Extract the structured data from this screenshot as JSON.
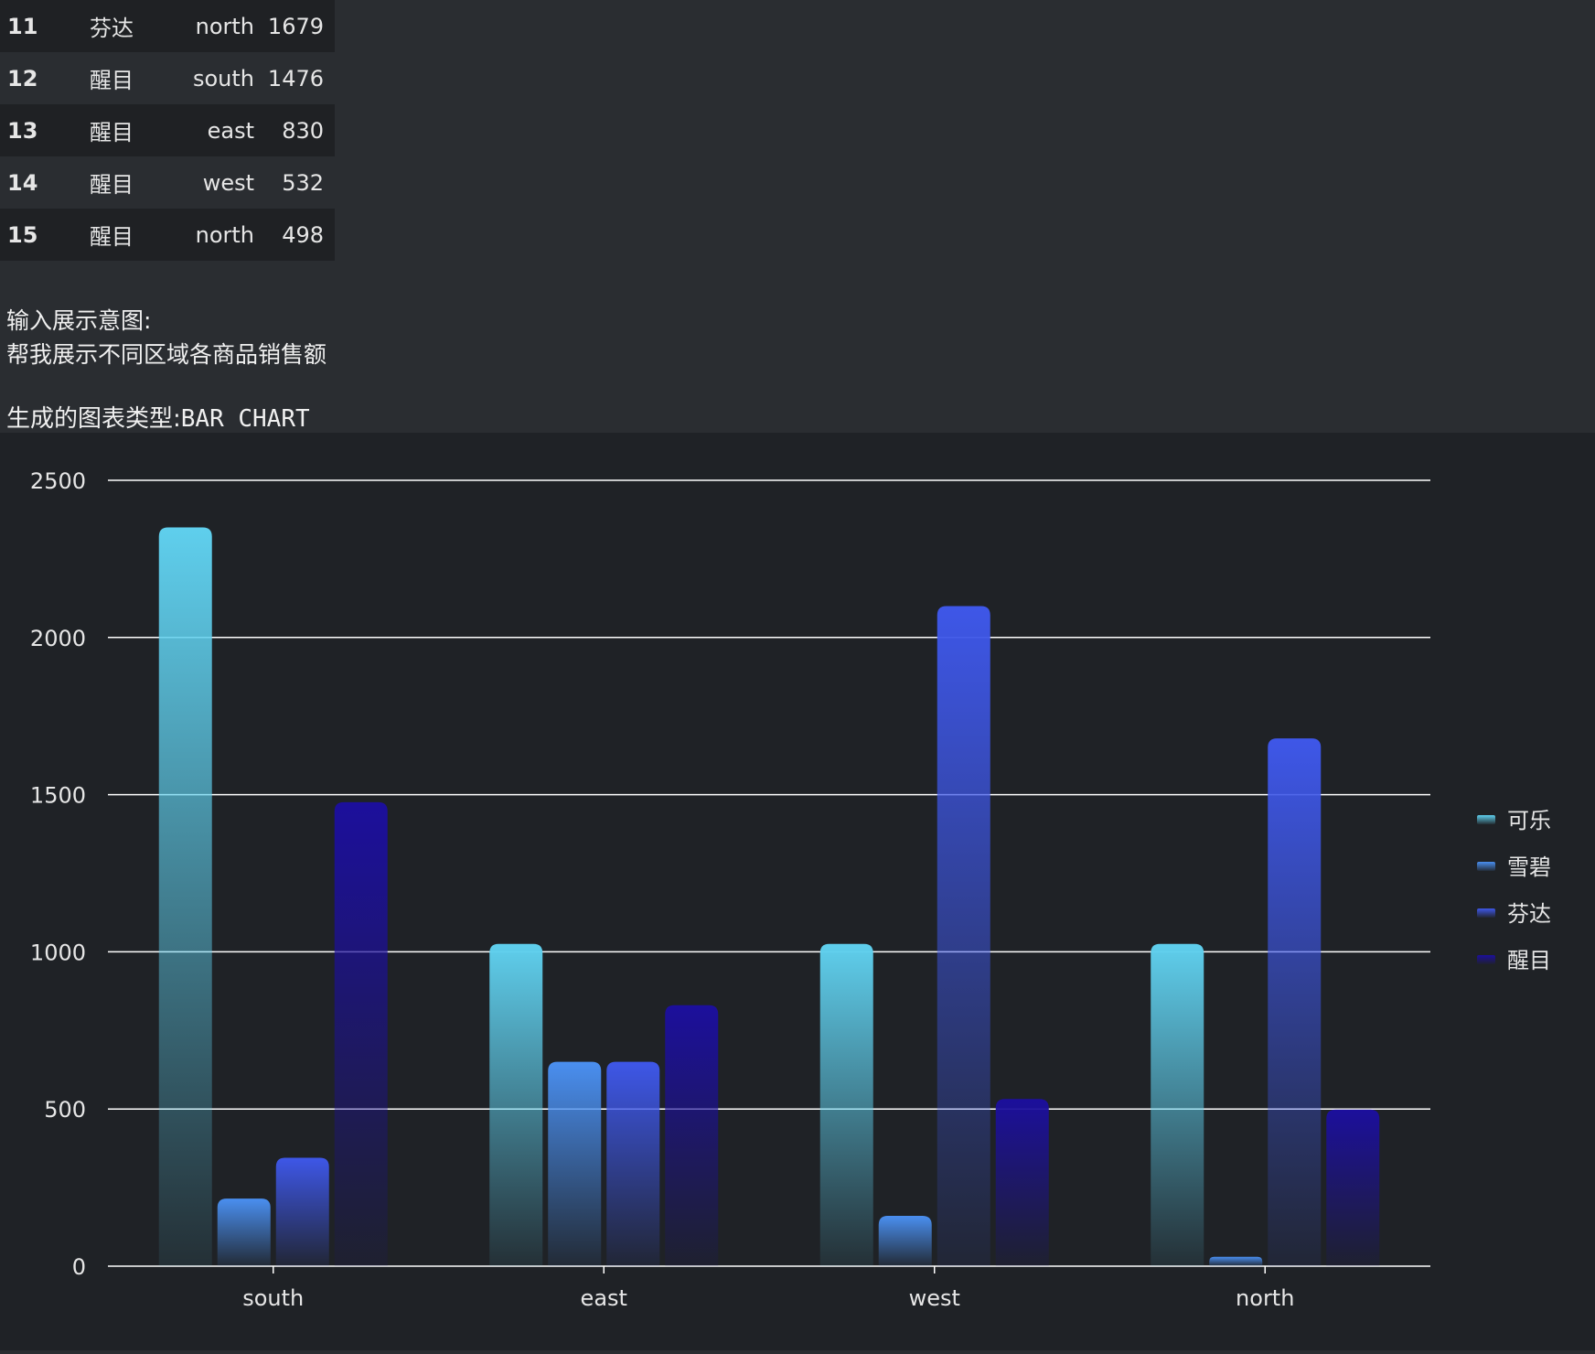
{
  "table": {
    "rows": [
      {
        "idx": "11",
        "product": "芬达",
        "region": "north",
        "value": "1679"
      },
      {
        "idx": "12",
        "product": "醒目",
        "region": "south",
        "value": "1476"
      },
      {
        "idx": "13",
        "product": "醒目",
        "region": "east",
        "value": "830"
      },
      {
        "idx": "14",
        "product": "醒目",
        "region": "west",
        "value": "532"
      },
      {
        "idx": "15",
        "product": "醒目",
        "region": "north",
        "value": "498"
      }
    ]
  },
  "intent": {
    "label": "输入展示意图:",
    "text": "帮我展示不同区域各商品销售额"
  },
  "chart_type_line": {
    "label": "生成的图表类型:",
    "value": "BAR CHART"
  },
  "colors": {
    "可乐": "#5fcfed",
    "雪碧": "#4a8ff0",
    "芬达": "#3e57e8",
    "醒目": "#1c0f9c",
    "grid": "#ffffff",
    "background": "#1f2226"
  },
  "chart_data": {
    "type": "bar",
    "categories": [
      "south",
      "east",
      "west",
      "north"
    ],
    "series": [
      {
        "name": "可乐",
        "values": [
          2350,
          1025,
          1025,
          1025
        ]
      },
      {
        "name": "雪碧",
        "values": [
          215,
          650,
          160,
          30
        ]
      },
      {
        "name": "芬达",
        "values": [
          345,
          650,
          2100,
          1679
        ]
      },
      {
        "name": "醒目",
        "values": [
          1476,
          830,
          532,
          498
        ]
      }
    ],
    "yticks": [
      "0",
      "500",
      "1000",
      "1500",
      "2000",
      "2500"
    ],
    "ylim": [
      0,
      2500
    ],
    "grid": true,
    "legend": "right"
  }
}
